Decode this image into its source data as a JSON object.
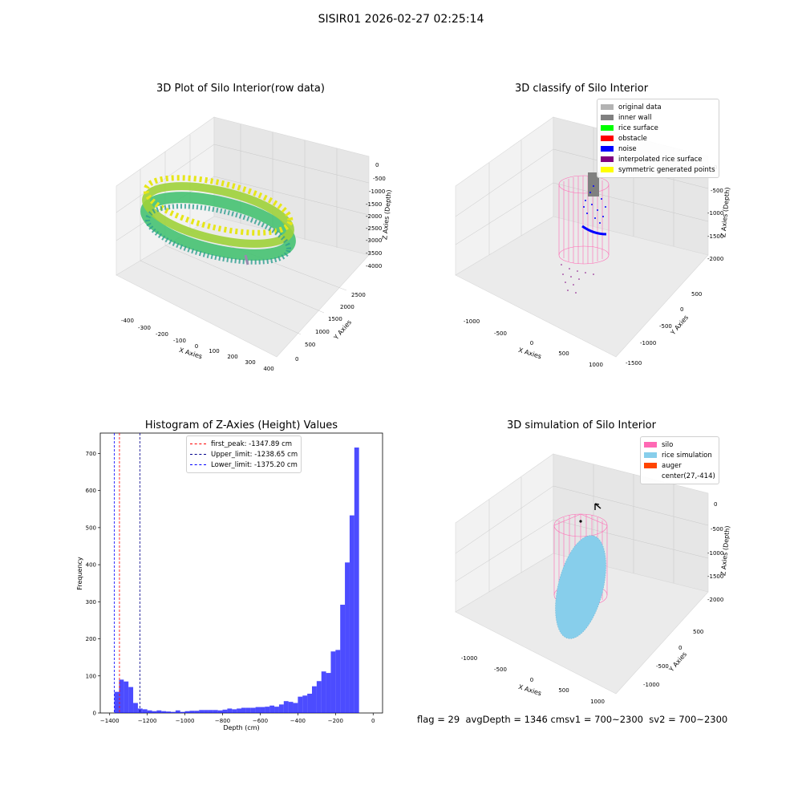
{
  "figure": {
    "suptitle": "SISIR01 2026-02-27 02:25:14",
    "status": {
      "flag": "flag = 29",
      "avg": "avgDepth = 1346 cm",
      "sv1": "sv1 = 700~2300",
      "sv2": "sv2 = 700~2300"
    }
  },
  "panel1": {
    "title": "3D Plot of Silo Interior(row data)",
    "xlabel": "X Axies",
    "ylabel": "Y Axies",
    "zlabel": "Z Axies (Depth)",
    "xticks": [
      "-400",
      "-300",
      "-200",
      "-100",
      "0",
      "100",
      "200",
      "300",
      "400"
    ],
    "yticks": [
      "0",
      "500",
      "1000",
      "1500",
      "2000",
      "2500"
    ],
    "zticks": [
      "0",
      "-500",
      "-1000",
      "-1500",
      "-2000",
      "-2500",
      "-3000",
      "-3500",
      "-4000"
    ]
  },
  "panel2": {
    "title": "3D classify of Silo Interior",
    "xlabel": "X Axies",
    "ylabel": "Y Axies",
    "zlabel": "Z Axies (Depth)",
    "xticks": [
      "-1000",
      "-500",
      "0",
      "500",
      "1000"
    ],
    "yticks": [
      "500",
      "0",
      "-500",
      "-1000",
      "-1500"
    ],
    "zticks": [
      "0",
      "-500",
      "-1000",
      "-1500",
      "-2000"
    ],
    "legend": [
      {
        "label": "original data",
        "color": "#b3b3b3"
      },
      {
        "label": "inner wall",
        "color": "#808080"
      },
      {
        "label": "rice surface",
        "color": "#00ff00"
      },
      {
        "label": "obstacle",
        "color": "#ff0000"
      },
      {
        "label": "noise",
        "color": "#0000ff"
      },
      {
        "label": "interpolated rice surface",
        "color": "#800080"
      },
      {
        "label": "symmetric generated points",
        "color": "#ffff00"
      }
    ]
  },
  "panel4": {
    "title": "3D simulation of Silo Interior",
    "xlabel": "X Axies",
    "ylabel": "Y Axies",
    "zlabel": "Z Axies (Depth)",
    "xticks": [
      "-1000",
      "-500",
      "0",
      "500",
      "1000"
    ],
    "yticks": [
      "500",
      "0",
      "-500",
      "-1000"
    ],
    "zticks": [
      "0",
      "-500",
      "-1000",
      "-1500",
      "-2000"
    ],
    "legend": [
      {
        "label": "silo",
        "color": "#ff69b4"
      },
      {
        "label": "rice simulation",
        "color": "#87ceeb"
      },
      {
        "label": "auger",
        "color": "#ff4500"
      },
      {
        "label": "center(27,-414)",
        "color": ""
      }
    ]
  },
  "chart_data": {
    "type": "bar",
    "title": "Histogram of Z-Axies (Height) Values",
    "xlabel": "Depth (cm)",
    "ylabel": "Frequency",
    "xlim": [
      -1450,
      50
    ],
    "ylim": [
      0,
      755
    ],
    "bin_width": 25,
    "bin_starts": [
      -1375,
      -1350,
      -1325,
      -1300,
      -1275,
      -1250,
      -1225,
      -1200,
      -1175,
      -1150,
      -1125,
      -1100,
      -1075,
      -1050,
      -1025,
      -1000,
      -975,
      -950,
      -925,
      -900,
      -875,
      -850,
      -825,
      -800,
      -775,
      -750,
      -725,
      -700,
      -675,
      -650,
      -625,
      -600,
      -575,
      -550,
      -525,
      -500,
      -475,
      -450,
      -425,
      -400,
      -375,
      -350,
      -325,
      -300,
      -275,
      -250,
      -225,
      -200,
      -175,
      -150,
      -125,
      -100,
      -75,
      -50,
      -25
    ],
    "values": [
      57,
      90,
      85,
      70,
      27,
      12,
      10,
      7,
      5,
      7,
      5,
      4,
      3,
      7,
      3,
      5,
      6,
      6,
      8,
      8,
      8,
      8,
      7,
      9,
      12,
      10,
      12,
      14,
      14,
      14,
      16,
      16,
      17,
      20,
      17,
      23,
      32,
      30,
      27,
      44,
      47,
      52,
      72,
      86,
      112,
      108,
      166,
      170,
      292,
      406,
      533,
      716,
      0,
      0,
      0
    ],
    "bar_color": "#0000ff",
    "xticks": [
      -1400,
      -1200,
      -1000,
      -800,
      -600,
      -400,
      -200,
      0
    ],
    "yticks": [
      0,
      100,
      200,
      300,
      400,
      500,
      600,
      700
    ],
    "vlines": [
      {
        "label": "first_peak: -1347.89 cm",
        "x": -1347.89,
        "color": "#ff0000"
      },
      {
        "label": "Upper_limit: -1238.65 cm",
        "x": -1238.65,
        "color": "#00008b"
      },
      {
        "label": "Lower_limit: -1375.20 cm",
        "x": -1375.2,
        "color": "#0000ff"
      }
    ],
    "legend_position": "top-center"
  }
}
